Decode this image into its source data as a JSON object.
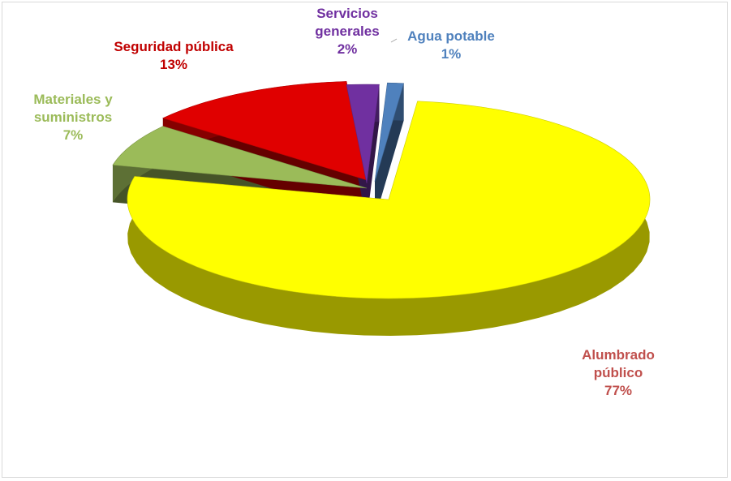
{
  "chart_data": {
    "type": "pie",
    "style": "3d-exploded",
    "title": "",
    "slices": [
      {
        "label_lines": [
          "Alumbrado",
          "público"
        ],
        "pct_label": "77%",
        "value": 77,
        "color": "#ffff00",
        "label_color": "#c0504d"
      },
      {
        "label_lines": [
          "Materiales y",
          "suministros"
        ],
        "pct_label": "7%",
        "value": 7,
        "color": "#9bbb59",
        "label_color": "#9bbb59"
      },
      {
        "label_lines": [
          "Seguridad pública"
        ],
        "pct_label": "13%",
        "value": 13,
        "color": "#e00000",
        "label_color": "#c00000"
      },
      {
        "label_lines": [
          "Servicios",
          "generales"
        ],
        "pct_label": "2%",
        "value": 2,
        "color": "#7030a0",
        "label_color": "#7030a0"
      },
      {
        "label_lines": [
          "Agua potable"
        ],
        "pct_label": "1%",
        "value": 1,
        "color": "#4f81bd",
        "label_color": "#4f81bd"
      }
    ],
    "legend": "none"
  }
}
